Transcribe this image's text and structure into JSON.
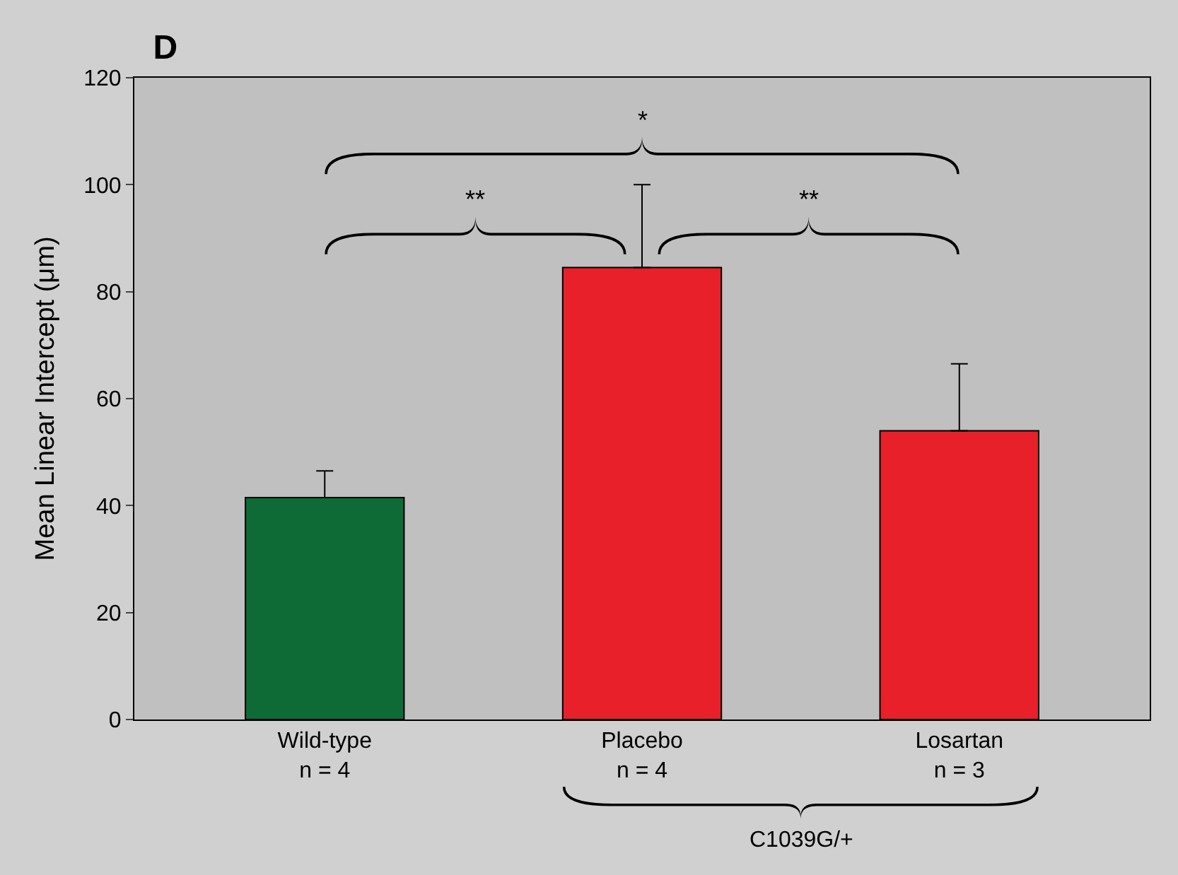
{
  "chart_data": {
    "type": "bar",
    "title": "D",
    "ylabel": "Mean Linear Intercept (μm)",
    "categories": [
      "Wild-type\nn = 4",
      "Placebo\nn = 4",
      "Losartan\nn = 3"
    ],
    "values": [
      41.5,
      84.5,
      54
    ],
    "colors": [
      "#0e6b35",
      "#e8202a",
      "#e8202a"
    ],
    "errors": [
      [
        41.5,
        46.5
      ],
      [
        84.5,
        100
      ],
      [
        54,
        66.5
      ]
    ],
    "ylim": [
      0,
      120
    ],
    "yticks": [
      0,
      20,
      40,
      60,
      80,
      100,
      120
    ],
    "grid": false,
    "legend": false,
    "annotations": [
      "*",
      "**",
      "**",
      "C1039G/+"
    ]
  }
}
